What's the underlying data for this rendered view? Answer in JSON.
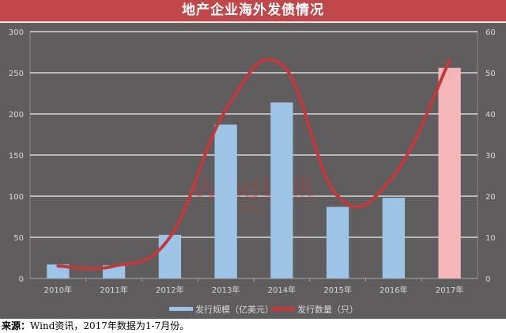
{
  "title": "地产企业海外发债情况",
  "source_note": {
    "prefix": "来源：",
    "text": "Wind资讯，2017年数据为1-7月份。"
  },
  "watermark": {
    "line1": "Wind資訊",
    "line2": "微信公众号：wind"
  },
  "colors": {
    "title_bg": "#c0474a",
    "panel_bg": "#5f5d5d",
    "bar": "#9dc3e6",
    "bar_highlight": "#f4b6b8",
    "line": "#c0393c",
    "grid": "#d9d9d9",
    "tick_text": "#d9d9d9"
  },
  "chart_data": {
    "type": "bar+line",
    "title": "地产企业海外发债情况",
    "categories": [
      "2010年",
      "2011年",
      "2012年",
      "2013年",
      "2014年",
      "2015年",
      "2016年",
      "2017年"
    ],
    "series": [
      {
        "name": "发行规模（亿美元）",
        "type": "bar",
        "axis": "left",
        "values": [
          17,
          16,
          53,
          187,
          214,
          87,
          98,
          256
        ]
      },
      {
        "name": "发行数量（只）",
        "type": "line",
        "smooth": true,
        "axis": "right",
        "values": [
          3,
          3,
          10,
          41,
          52,
          20,
          25,
          53
        ]
      }
    ],
    "left_axis": {
      "range": [
        0,
        300
      ],
      "ticks": [
        0,
        50,
        100,
        150,
        200,
        250,
        300
      ]
    },
    "right_axis": {
      "range": [
        0,
        60
      ],
      "ticks": [
        0,
        10,
        20,
        30,
        40,
        50,
        60
      ]
    },
    "grid": true,
    "legend_position": "bottom",
    "xlabel": "",
    "ylabel": ""
  },
  "legend": [
    {
      "label": "发行规模（亿美元）",
      "color": "#9dc3e6"
    },
    {
      "label": "发行数量（只）",
      "color": "#c0393c"
    }
  ]
}
